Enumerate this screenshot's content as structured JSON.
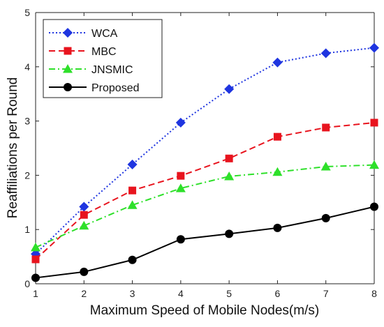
{
  "chart_data": {
    "type": "line",
    "xlabel": "Maximum Speed of Mobile Nodes(m/s)",
    "ylabel": "Reaffiliations per Round",
    "x": [
      1,
      2,
      3,
      4,
      5,
      6,
      7,
      8
    ],
    "xlim": [
      1,
      8
    ],
    "ylim": [
      0,
      5
    ],
    "xticks": [
      "1",
      "2",
      "3",
      "4",
      "5",
      "6",
      "7",
      "8"
    ],
    "yticks": [
      "0",
      "1",
      "2",
      "3",
      "4",
      "5"
    ],
    "grid": false,
    "legend_position": "top-left",
    "series": [
      {
        "name": "WCA",
        "values": [
          0.55,
          1.42,
          2.2,
          2.97,
          3.59,
          4.08,
          4.25,
          4.35
        ],
        "color": "#1f35e0",
        "marker": "diamond",
        "dash": "dotted"
      },
      {
        "name": "MBC",
        "values": [
          0.45,
          1.27,
          1.72,
          1.99,
          2.31,
          2.71,
          2.88,
          2.97
        ],
        "color": "#e8141e",
        "marker": "square",
        "dash": "dashed"
      },
      {
        "name": "JNSMIC",
        "values": [
          0.67,
          1.07,
          1.45,
          1.76,
          1.98,
          2.06,
          2.16,
          2.19
        ],
        "color": "#2ee02a",
        "marker": "triangle",
        "dash": "dashdot"
      },
      {
        "name": "Proposed",
        "values": [
          0.11,
          0.22,
          0.44,
          0.82,
          0.92,
          1.03,
          1.21,
          1.42
        ],
        "color": "#000000",
        "marker": "circle",
        "dash": "solid"
      }
    ]
  }
}
